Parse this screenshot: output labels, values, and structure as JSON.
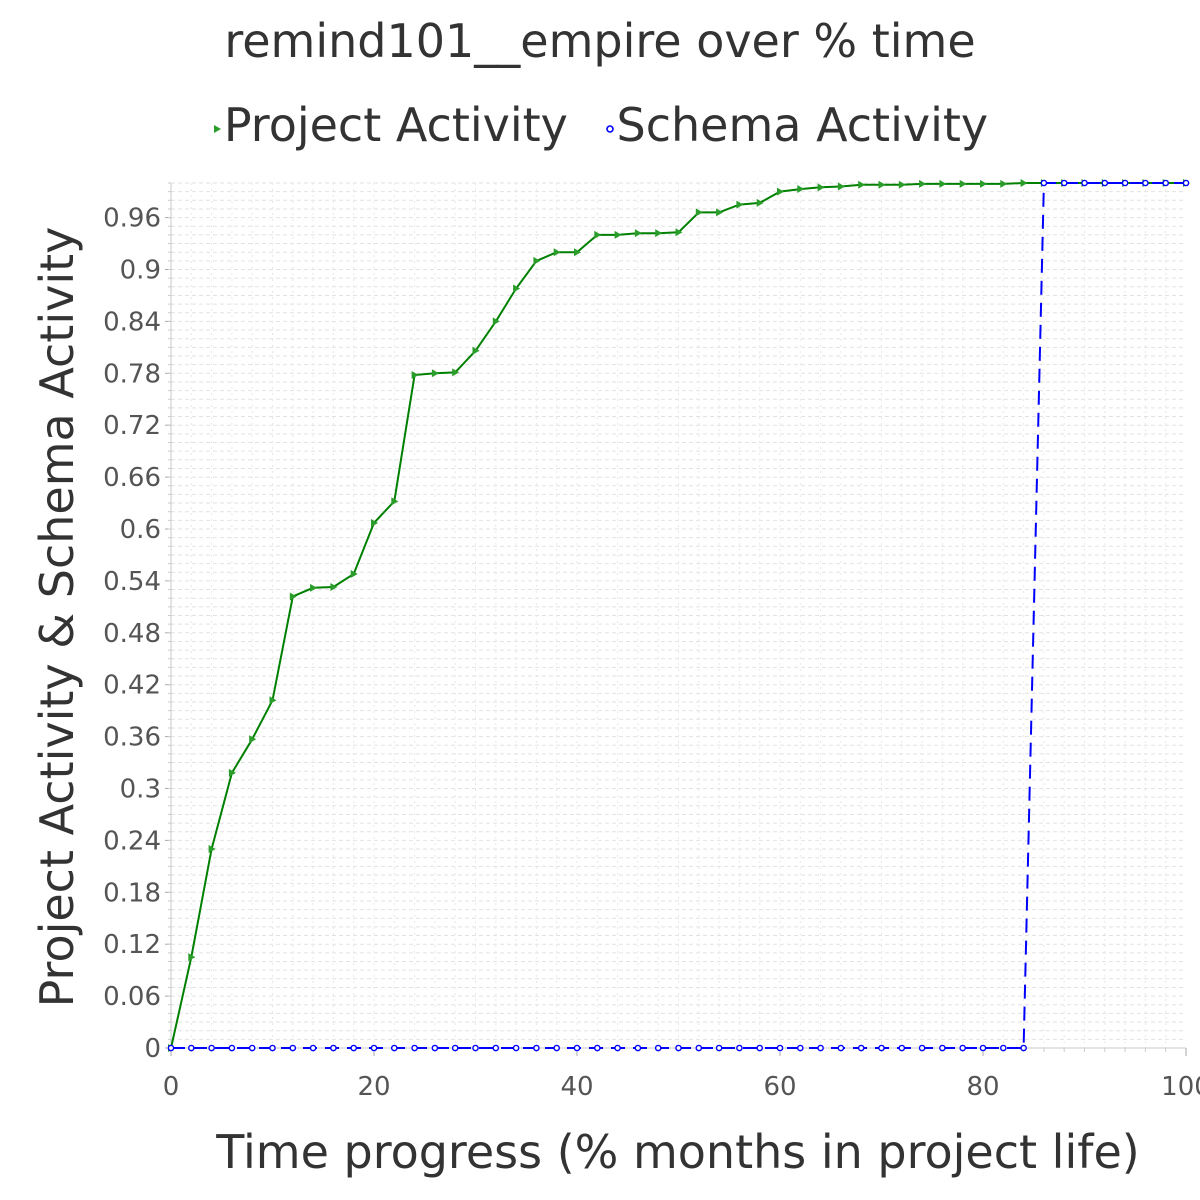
{
  "chart_data": {
    "type": "line",
    "title": "remind101__empire over % time",
    "xlabel": "Time progress (% months in project life)",
    "ylabel": "Project Activity & Schema Activity",
    "xlim": [
      0,
      100
    ],
    "ylim": [
      0,
      1
    ],
    "x_ticks": [
      "0",
      "20",
      "40",
      "60",
      "80",
      "100"
    ],
    "y_ticks": [
      "0",
      "0.06",
      "0.12",
      "0.18",
      "0.24",
      "0.3",
      "0.36",
      "0.42",
      "0.48",
      "0.54",
      "0.6",
      "0.66",
      "0.72",
      "0.78",
      "0.84",
      "0.9",
      "0.96"
    ],
    "grid": true,
    "legend_position": "top-center",
    "series": [
      {
        "name": "Project Activity",
        "color": "#008000",
        "marker": "triangle-right",
        "line_style": "solid",
        "x": [
          0,
          2,
          4,
          6,
          8,
          10,
          12,
          14,
          16,
          18,
          20,
          22,
          24,
          26,
          28,
          30,
          32,
          34,
          36,
          38,
          40,
          42,
          44,
          46,
          48,
          50,
          52,
          54,
          56,
          58,
          60,
          62,
          64,
          66,
          68,
          70,
          72,
          74,
          76,
          78,
          80,
          82,
          84,
          86,
          88,
          90,
          92,
          94,
          96,
          98,
          100
        ],
        "y": [
          0.0,
          0.105,
          0.23,
          0.318,
          0.357,
          0.402,
          0.522,
          0.532,
          0.533,
          0.548,
          0.607,
          0.632,
          0.778,
          0.78,
          0.781,
          0.806,
          0.84,
          0.878,
          0.91,
          0.92,
          0.92,
          0.94,
          0.94,
          0.942,
          0.942,
          0.943,
          0.966,
          0.966,
          0.975,
          0.977,
          0.99,
          0.993,
          0.995,
          0.996,
          0.998,
          0.998,
          0.998,
          0.999,
          0.999,
          0.999,
          0.999,
          0.999,
          1.0,
          1.0,
          1.0,
          1.0,
          1.0,
          1.0,
          1.0,
          1.0,
          1.0
        ]
      },
      {
        "name": "Schema Activity",
        "color": "#0000ff",
        "marker": "circle",
        "line_style": "dashed",
        "x": [
          0,
          2,
          4,
          6,
          8,
          10,
          12,
          14,
          16,
          18,
          20,
          22,
          24,
          26,
          28,
          30,
          32,
          34,
          36,
          38,
          40,
          42,
          44,
          46,
          48,
          50,
          52,
          54,
          56,
          58,
          60,
          62,
          64,
          66,
          68,
          70,
          72,
          74,
          76,
          78,
          80,
          82,
          84,
          86,
          88,
          90,
          92,
          94,
          96,
          98,
          100
        ],
        "y": [
          0,
          0,
          0,
          0,
          0,
          0,
          0,
          0,
          0,
          0,
          0,
          0,
          0,
          0,
          0,
          0,
          0,
          0,
          0,
          0,
          0,
          0,
          0,
          0,
          0,
          0,
          0,
          0,
          0,
          0,
          0,
          0,
          0,
          0,
          0,
          0,
          0,
          0,
          0,
          0,
          0,
          0,
          0,
          1,
          1,
          1,
          1,
          1,
          1,
          1,
          1
        ]
      }
    ]
  }
}
